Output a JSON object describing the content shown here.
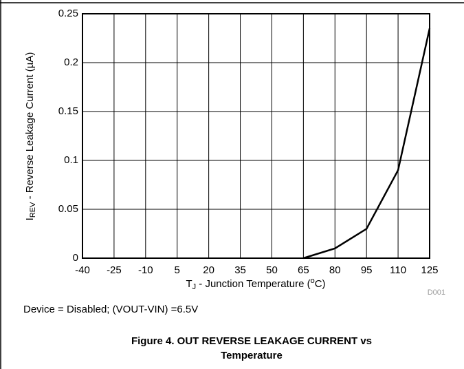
{
  "chart_data": {
    "type": "line",
    "x_label": {
      "parts": [
        "T",
        "J",
        " - Junction Temperature (",
        "o",
        "C)"
      ]
    },
    "y_label": {
      "parts": [
        "I",
        "REV",
        " - Reverse Leakage Current (µA)"
      ]
    },
    "x": [
      65,
      80,
      95,
      110,
      125
    ],
    "series": [
      {
        "color": "#000000",
        "values": [
          0,
          0.01,
          0.03,
          0.09,
          0.235
        ]
      }
    ],
    "xlim": [
      -40,
      125
    ],
    "xticks": [
      -40,
      -25,
      -10,
      5,
      20,
      35,
      50,
      65,
      80,
      95,
      110,
      125
    ],
    "ylim": [
      0,
      0.25
    ],
    "yticks": [
      0,
      0.05,
      0.1,
      0.15,
      0.2,
      0.25
    ],
    "grid": true,
    "figure_id": "D001",
    "note": "Device = Disabled; (VOUT-VIN) =6.5V",
    "caption": [
      "Figure 4. OUT REVERSE LEAKAGE CURRENT vs",
      "Temperature"
    ]
  }
}
